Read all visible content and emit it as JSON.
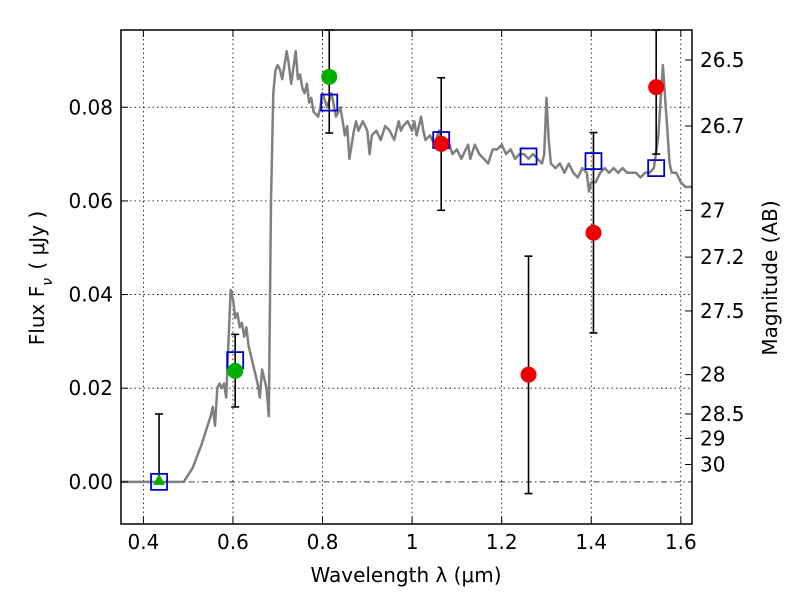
{
  "chart_data": {
    "type": "scatter",
    "xlabel": "Wavelength  λ (μm)",
    "ylabel": "Flux  F_ν  ( μJy )",
    "ylabel_right": "Magnitude (AB)",
    "xlim": [
      0.35,
      1.625
    ],
    "ylim": [
      -0.009,
      0.0965
    ],
    "grid": true,
    "x_ticks": [
      0.4,
      0.6,
      0.8,
      1.0,
      1.2,
      1.4,
      1.6
    ],
    "x_tick_labels": [
      "0.4",
      "0.6",
      "0.8",
      "1",
      "1.2",
      "1.4",
      "1.6"
    ],
    "y_ticks": [
      0.0,
      0.02,
      0.04,
      0.06,
      0.08
    ],
    "y_tick_labels": [
      "0.00",
      "0.02",
      "0.04",
      "0.06",
      "0.08"
    ],
    "right_ticks": [
      {
        "label": "26.5",
        "flux": 0.0901
      },
      {
        "label": "26.7",
        "flux": 0.076
      },
      {
        "label": "27",
        "flux": 0.058
      },
      {
        "label": "27.2",
        "flux": 0.048
      },
      {
        "label": "27.5",
        "flux": 0.0365
      },
      {
        "label": "28",
        "flux": 0.0229
      },
      {
        "label": "28.5",
        "flux": 0.0145
      },
      {
        "label": "29",
        "flux": 0.0093
      },
      {
        "label": "30",
        "flux": 0.0037
      }
    ],
    "series": [
      {
        "kind": "template",
        "color": "#808080",
        "points": [
          [
            0.35,
            0.0
          ],
          [
            0.49,
            0.0
          ],
          [
            0.51,
            0.003
          ],
          [
            0.53,
            0.008
          ],
          [
            0.55,
            0.014
          ],
          [
            0.555,
            0.016
          ],
          [
            0.56,
            0.012
          ],
          [
            0.565,
            0.02
          ],
          [
            0.57,
            0.021
          ],
          [
            0.575,
            0.02
          ],
          [
            0.58,
            0.021
          ],
          [
            0.585,
            0.018
          ],
          [
            0.59,
            0.03
          ],
          [
            0.595,
            0.041
          ],
          [
            0.6,
            0.039
          ],
          [
            0.605,
            0.035
          ],
          [
            0.61,
            0.036
          ],
          [
            0.615,
            0.033
          ],
          [
            0.62,
            0.034
          ],
          [
            0.625,
            0.031
          ],
          [
            0.63,
            0.033
          ],
          [
            0.635,
            0.029
          ],
          [
            0.64,
            0.027
          ],
          [
            0.645,
            0.025
          ],
          [
            0.65,
            0.023
          ],
          [
            0.655,
            0.021
          ],
          [
            0.66,
            0.018
          ],
          [
            0.665,
            0.024
          ],
          [
            0.67,
            0.022
          ],
          [
            0.675,
            0.02
          ],
          [
            0.68,
            0.014
          ],
          [
            0.685,
            0.06
          ],
          [
            0.69,
            0.083
          ],
          [
            0.695,
            0.088
          ],
          [
            0.7,
            0.089
          ],
          [
            0.705,
            0.088
          ],
          [
            0.71,
            0.086
          ],
          [
            0.715,
            0.089
          ],
          [
            0.72,
            0.092
          ],
          [
            0.725,
            0.089
          ],
          [
            0.73,
            0.085
          ],
          [
            0.74,
            0.092
          ],
          [
            0.745,
            0.086
          ],
          [
            0.75,
            0.087
          ],
          [
            0.755,
            0.084
          ],
          [
            0.76,
            0.083
          ],
          [
            0.765,
            0.085
          ],
          [
            0.77,
            0.081
          ],
          [
            0.775,
            0.082
          ],
          [
            0.78,
            0.079
          ],
          [
            0.79,
            0.078
          ],
          [
            0.795,
            0.08
          ],
          [
            0.8,
            0.083
          ],
          [
            0.81,
            0.08
          ],
          [
            0.82,
            0.083
          ],
          [
            0.83,
            0.078
          ],
          [
            0.84,
            0.08
          ],
          [
            0.845,
            0.077
          ],
          [
            0.85,
            0.074
          ],
          [
            0.855,
            0.076
          ],
          [
            0.86,
            0.069
          ],
          [
            0.87,
            0.075
          ],
          [
            0.875,
            0.077
          ],
          [
            0.88,
            0.075
          ],
          [
            0.89,
            0.077
          ],
          [
            0.9,
            0.075
          ],
          [
            0.905,
            0.07
          ],
          [
            0.91,
            0.074
          ],
          [
            0.92,
            0.075
          ],
          [
            0.93,
            0.073
          ],
          [
            0.94,
            0.076
          ],
          [
            0.95,
            0.075
          ],
          [
            0.96,
            0.073
          ],
          [
            0.97,
            0.077
          ],
          [
            0.975,
            0.075
          ],
          [
            0.98,
            0.076
          ],
          [
            0.99,
            0.077
          ],
          [
            1.0,
            0.075
          ],
          [
            1.005,
            0.077
          ],
          [
            1.01,
            0.074
          ],
          [
            1.02,
            0.078
          ],
          [
            1.025,
            0.075
          ],
          [
            1.03,
            0.073
          ],
          [
            1.04,
            0.074
          ],
          [
            1.05,
            0.072
          ],
          [
            1.06,
            0.075
          ],
          [
            1.065,
            0.072
          ],
          [
            1.07,
            0.071
          ],
          [
            1.08,
            0.073
          ],
          [
            1.09,
            0.07
          ],
          [
            1.1,
            0.071
          ],
          [
            1.11,
            0.069
          ],
          [
            1.12,
            0.071
          ],
          [
            1.125,
            0.072
          ],
          [
            1.13,
            0.069
          ],
          [
            1.14,
            0.072
          ],
          [
            1.15,
            0.07
          ],
          [
            1.16,
            0.069
          ],
          [
            1.17,
            0.068
          ],
          [
            1.18,
            0.071
          ],
          [
            1.19,
            0.071
          ],
          [
            1.2,
            0.072
          ],
          [
            1.21,
            0.07
          ],
          [
            1.22,
            0.071
          ],
          [
            1.23,
            0.069
          ],
          [
            1.24,
            0.07
          ],
          [
            1.25,
            0.07
          ],
          [
            1.26,
            0.069
          ],
          [
            1.27,
            0.07
          ],
          [
            1.28,
            0.069
          ],
          [
            1.29,
            0.068
          ],
          [
            1.295,
            0.07
          ],
          [
            1.3,
            0.082
          ],
          [
            1.305,
            0.073
          ],
          [
            1.31,
            0.068
          ],
          [
            1.32,
            0.067
          ],
          [
            1.33,
            0.068
          ],
          [
            1.34,
            0.066
          ],
          [
            1.35,
            0.068
          ],
          [
            1.36,
            0.066
          ],
          [
            1.37,
            0.065
          ],
          [
            1.38,
            0.067
          ],
          [
            1.39,
            0.066
          ],
          [
            1.395,
            0.062
          ],
          [
            1.4,
            0.064
          ],
          [
            1.41,
            0.064
          ],
          [
            1.42,
            0.066
          ],
          [
            1.43,
            0.067
          ],
          [
            1.44,
            0.066
          ],
          [
            1.45,
            0.067
          ],
          [
            1.46,
            0.066
          ],
          [
            1.47,
            0.067
          ],
          [
            1.48,
            0.066
          ],
          [
            1.49,
            0.066
          ],
          [
            1.5,
            0.066
          ],
          [
            1.51,
            0.065
          ],
          [
            1.52,
            0.066
          ],
          [
            1.53,
            0.066
          ],
          [
            1.54,
            0.067
          ],
          [
            1.55,
            0.074
          ],
          [
            1.555,
            0.082
          ],
          [
            1.56,
            0.089
          ],
          [
            1.565,
            0.082
          ],
          [
            1.57,
            0.075
          ],
          [
            1.575,
            0.068
          ],
          [
            1.58,
            0.066
          ],
          [
            1.59,
            0.066
          ],
          [
            1.6,
            0.064
          ],
          [
            1.61,
            0.063
          ],
          [
            1.625,
            0.063
          ]
        ]
      },
      {
        "kind": "model_flux",
        "marker": "square",
        "color": "#0000cc",
        "points": [
          [
            0.435,
            0.0
          ],
          [
            0.605,
            0.026
          ],
          [
            0.815,
            0.081
          ],
          [
            1.065,
            0.073
          ],
          [
            1.26,
            0.0695
          ],
          [
            1.405,
            0.0685
          ],
          [
            1.545,
            0.067
          ]
        ]
      },
      {
        "kind": "observed_green",
        "marker": "circle",
        "color": "#00b000",
        "points": [
          {
            "x": 0.605,
            "y": 0.0237,
            "err_low": 0.016,
            "err_high": 0.0315
          },
          {
            "x": 0.815,
            "y": 0.0865,
            "err_low": 0.0745,
            "err_high": 0.0965
          }
        ]
      },
      {
        "kind": "observed_green_limit",
        "marker": "triangle",
        "color": "#00b000",
        "points": [
          {
            "x": 0.435,
            "y": 0.0,
            "err_low": 0.0,
            "err_high": 0.0145
          }
        ]
      },
      {
        "kind": "observed_red",
        "marker": "circle",
        "color": "#ee0000",
        "points": [
          {
            "x": 1.065,
            "y": 0.0722,
            "err_low": 0.058,
            "err_high": 0.0863
          },
          {
            "x": 1.26,
            "y": 0.0229,
            "err_low": -0.0025,
            "err_high": 0.0482
          },
          {
            "x": 1.405,
            "y": 0.0532,
            "err_low": 0.0318,
            "err_high": 0.0746
          },
          {
            "x": 1.545,
            "y": 0.0843,
            "err_low": 0.07,
            "err_high": 0.0965
          }
        ]
      }
    ],
    "reference_line": {
      "y": 0.0,
      "style": "dash-dot",
      "color": "#404040"
    }
  }
}
